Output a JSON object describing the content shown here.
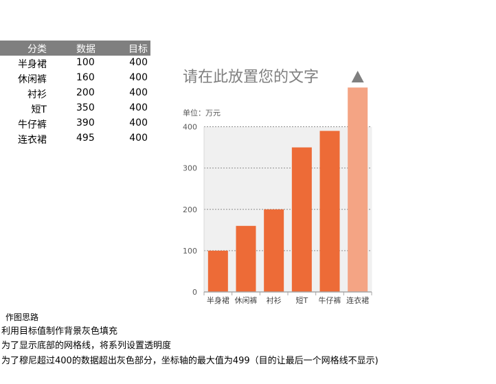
{
  "table": {
    "headers": [
      "分类",
      "数据",
      "目标"
    ],
    "rows": [
      {
        "category": "半身裙",
        "value": "100",
        "target": "400"
      },
      {
        "category": "休闲裤",
        "value": "160",
        "target": "400"
      },
      {
        "category": "衬衫",
        "value": "200",
        "target": "400"
      },
      {
        "category": "短T",
        "value": "350",
        "target": "400"
      },
      {
        "category": "牛仔裤",
        "value": "390",
        "target": "400"
      },
      {
        "category": "连衣裙",
        "value": "495",
        "target": "400"
      }
    ]
  },
  "chart_data": {
    "type": "bar",
    "title": "请在此放置您的文字",
    "unit_label": "单位：万元",
    "categories": [
      "半身裙",
      "休闲裤",
      "衬衫",
      "短T",
      "牛仔裤",
      "连衣裙"
    ],
    "series": [
      {
        "values": [
          100,
          160,
          200,
          350,
          390,
          495
        ]
      },
      {
        "values": [
          400,
          400,
          400,
          400,
          400,
          400
        ]
      }
    ],
    "yticks": [
      0,
      100,
      200,
      300,
      400
    ],
    "ylim": [
      0,
      499
    ],
    "grid": true,
    "colors": {
      "bar": "#ed6b37",
      "bar_over_target": "#f4a484",
      "background_fill": "#f0f0f0",
      "triangle": "#7f7f7f"
    },
    "annotation_icon": "up-triangle-icon"
  },
  "notes": {
    "heading": "作图思路",
    "lines": [
      "利用目标值制作背景灰色填充",
      "为了显示底部的网格线，将系列设置透明度",
      "为了穆尼超过400的数据超出灰色部分，坐标轴的最大值为499（目的让最后一个网格线不显示)"
    ]
  }
}
